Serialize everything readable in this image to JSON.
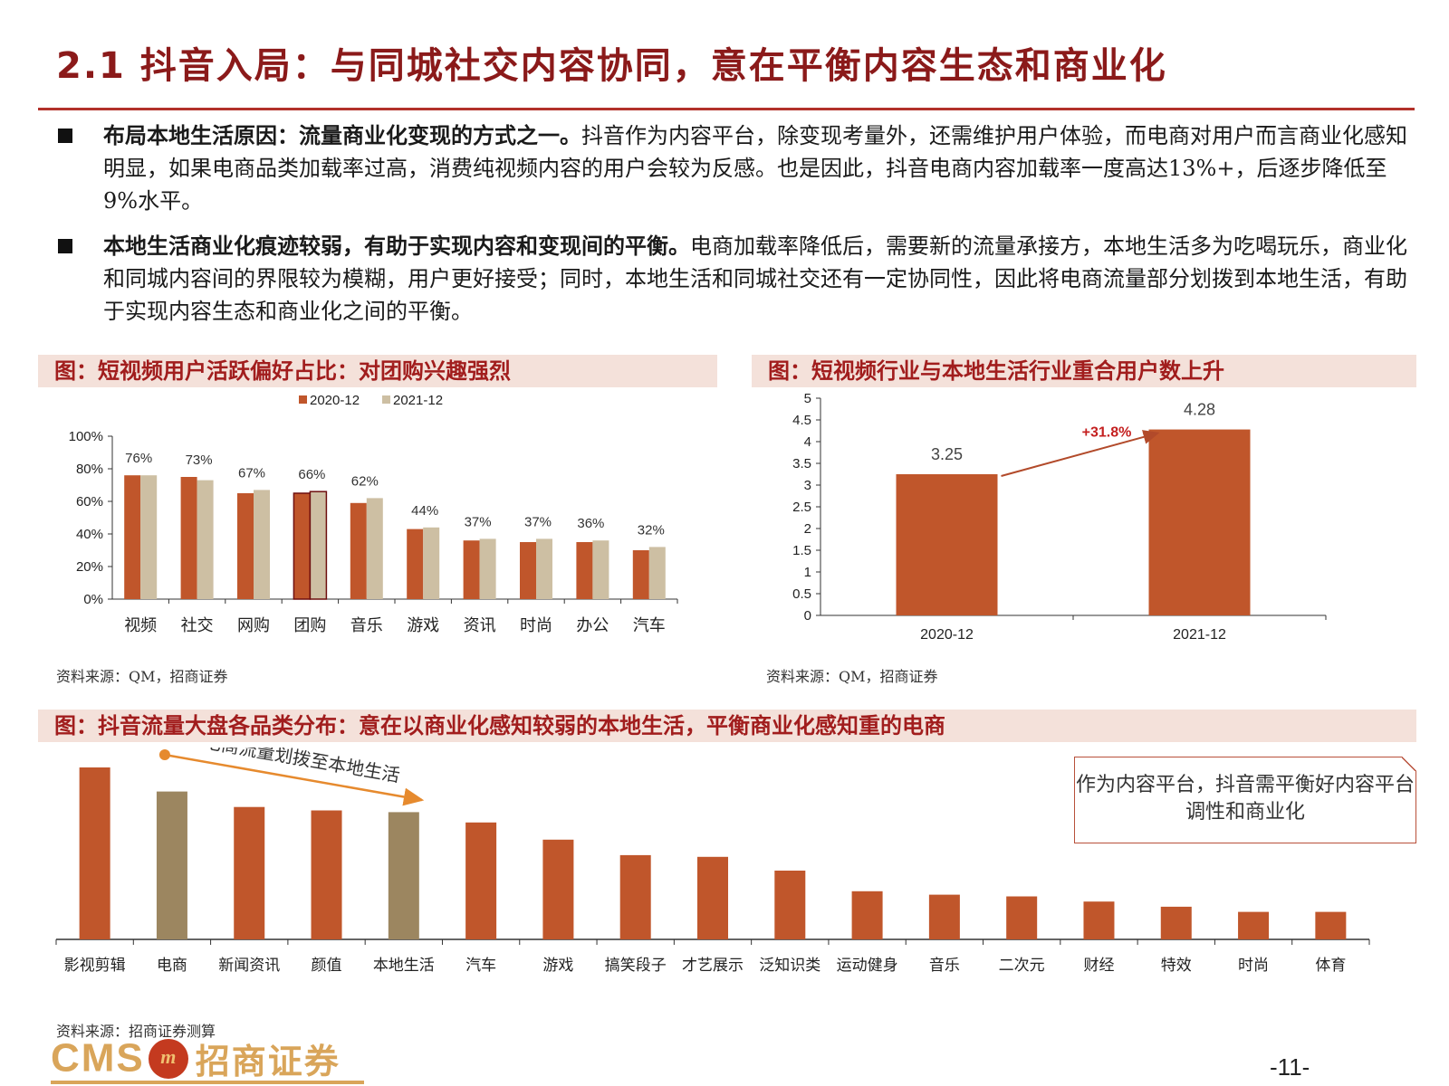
{
  "page": {
    "title": "2.1 抖音入局：与同城社交内容协同，意在平衡内容生态和商业化",
    "bullets": [
      {
        "bold": "布局本地生活原因：流量商业化变现的方式之一。",
        "text": "抖音作为内容平台，除变现考量外，还需维护用户体验，而电商对用户而言商业化感知明显，如果电商品类加载率过高，消费纯视频内容的用户会较为反感。也是因此，抖音电商内容加载率一度高达13%+，后逐步降低至9%水平。"
      },
      {
        "bold": "本地生活商业化痕迹较弱，有助于实现内容和变现间的平衡。",
        "text": "电商加载率降低后，需要新的流量承接方，本地生活多为吃喝玩乐，商业化和同城内容间的界限较为模糊，用户更好接受；同时，本地生活和同城社交还有一定协同性，因此将电商流量部分划拨到本地生活，有助于实现内容生态和商业化之间的平衡。"
      }
    ],
    "chart1_caption": "图：短视频用户活跃偏好占比：对团购兴趣强烈",
    "chart2_caption": "图：短视频行业与本地生活行业重合用户数上升",
    "chart3_caption": "图：抖音流量大盘各品类分布：意在以商业化感知较弱的本地生活，平衡商业化感知重的电商",
    "source1": "资料来源：QM，招商证券",
    "source2": "资料来源：QM，招商证券",
    "source3": "资料来源：招商证券测算",
    "note_box": "作为内容平台，抖音需平衡好内容平台调性和商业化",
    "logo_cms": "CMS",
    "logo_mark": "m",
    "logo_cn": "招商证券",
    "page_number": "-11-",
    "colors": {
      "accent": "#b2312a",
      "bar_primary": "#c0562b",
      "bar_secondary": "#cdbfa3",
      "bar_highlight": "#9c8660",
      "arrow": "#e68a2e"
    }
  },
  "chart_data": [
    {
      "type": "bar",
      "categories": [
        "视频",
        "社交",
        "网购",
        "团购",
        "音乐",
        "游戏",
        "资讯",
        "时尚",
        "办公",
        "汽车"
      ],
      "series": [
        {
          "name": "2020-12",
          "values": [
            76,
            75,
            65,
            65,
            59,
            43,
            36,
            35,
            35,
            30
          ]
        },
        {
          "name": "2021-12",
          "values": [
            76,
            73,
            67,
            66,
            62,
            44,
            37,
            37,
            36,
            32
          ]
        }
      ],
      "data_labels": [
        "76%",
        "73%",
        "67%",
        "66%",
        "62%",
        "44%",
        "37%",
        "37%",
        "36%",
        "32%"
      ],
      "y_ticks": [
        "0%",
        "20%",
        "40%",
        "60%",
        "80%",
        "100%"
      ],
      "ylim": [
        0,
        100
      ],
      "legend": "top"
    },
    {
      "type": "bar",
      "categories": [
        "2020-12",
        "2021-12"
      ],
      "values": [
        3.25,
        4.28
      ],
      "data_labels": [
        "3.25",
        "4.28"
      ],
      "annotation": "+31.8%",
      "y_ticks": [
        "0",
        "0.5",
        "1",
        "1.5",
        "2",
        "2.5",
        "3",
        "3.5",
        "4",
        "4.5",
        "5"
      ],
      "ylim": [
        0,
        5
      ]
    },
    {
      "type": "bar",
      "categories": [
        "影视剪辑",
        "电商",
        "新闻资讯",
        "颜值",
        "本地生活",
        "汽车",
        "游戏",
        "搞笑段子",
        "才艺展示",
        "泛知识类",
        "运动健身",
        "音乐",
        "二次元",
        "财经",
        "特效",
        "时尚",
        "体育"
      ],
      "values": [
        100,
        86,
        77,
        75,
        74,
        68,
        58,
        49,
        48,
        40,
        28,
        26,
        25,
        22,
        19,
        16,
        16
      ],
      "highlight": [
        "电商",
        "本地生活"
      ],
      "annotation": "电商流量划拨至本地生活"
    }
  ]
}
